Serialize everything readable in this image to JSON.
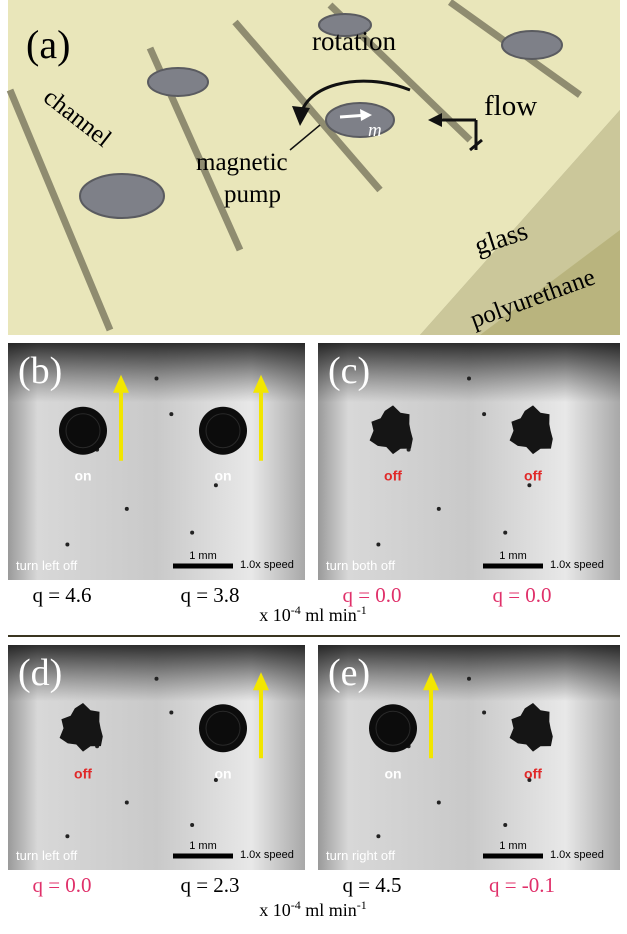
{
  "panel_a": {
    "label": "(a)",
    "rotation": "rotation",
    "flow": "flow",
    "channel": "channel",
    "magnetic_pump": [
      "magnetic",
      "pump"
    ],
    "moment": "m",
    "glass": "glass",
    "polyurethane": "polyurethane"
  },
  "panels": [
    {
      "label": "(b)",
      "pumps": [
        "on",
        "on"
      ],
      "caption": "turn left off",
      "scale": "1 mm",
      "speed": "1.0x speed"
    },
    {
      "label": "(c)",
      "pumps": [
        "off",
        "off"
      ],
      "caption": "turn both off",
      "scale": "1 mm",
      "speed": "1.0x speed"
    },
    {
      "label": "(d)",
      "pumps": [
        "off",
        "on"
      ],
      "caption": "turn left off",
      "scale": "1 mm",
      "speed": "1.0x speed"
    },
    {
      "label": "(e)",
      "pumps": [
        "on",
        "off"
      ],
      "caption": "turn right off",
      "scale": "1 mm",
      "speed": "1.0x speed"
    }
  ],
  "flow_rates": [
    {
      "values": [
        {
          "text": "q = 4.6",
          "color": "#000000"
        },
        {
          "text": "q = 3.8",
          "color": "#000000"
        },
        {
          "text": "q = 0.0",
          "color": "#e0306a"
        },
        {
          "text": "q = 0.0",
          "color": "#e0306a"
        }
      ],
      "unit": [
        "x 10",
        "-4",
        " ml min",
        "-1"
      ]
    },
    {
      "values": [
        {
          "text": "q = 0.0",
          "color": "#e0306a"
        },
        {
          "text": "q = 2.3",
          "color": "#000000"
        },
        {
          "text": "q = 4.5",
          "color": "#000000"
        },
        {
          "text": "q = -0.1",
          "color": "#e0306a"
        }
      ],
      "unit": [
        "x 10",
        "-4",
        " ml min",
        "-1"
      ]
    }
  ]
}
